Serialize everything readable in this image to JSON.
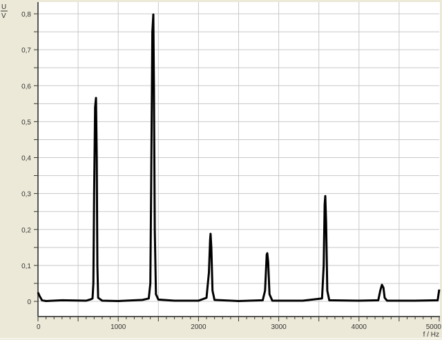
{
  "chart_data": {
    "type": "line",
    "title": "",
    "xlabel": "f / Hz",
    "ylabel_numerator": "U",
    "ylabel_denominator": "V",
    "xlim": [
      0,
      5000
    ],
    "ylim": [
      -0.04,
      0.833
    ],
    "grid": true,
    "x_ticks": [
      0,
      1000,
      2000,
      3000,
      4000,
      5000
    ],
    "x_tick_labels": [
      "0",
      "1000",
      "2000",
      "3000",
      "4000",
      "5000"
    ],
    "y_ticks": [
      0,
      0.1,
      0.2,
      0.3,
      0.4,
      0.5,
      0.6,
      0.7,
      0.8
    ],
    "y_tick_labels": [
      "0",
      "0,1",
      "0,2",
      "0,3",
      "0,4",
      "0,5",
      "0,6",
      "0,7",
      "0,8"
    ],
    "line_color": "#000000",
    "grid_color": "#c8c8c8",
    "background_color": "#ece9d8",
    "points": [
      [
        0,
        0.025
      ],
      [
        20,
        0.015
      ],
      [
        50,
        0.003
      ],
      [
        100,
        0.001
      ],
      [
        300,
        0.003
      ],
      [
        600,
        0.002
      ],
      [
        660,
        0.006
      ],
      [
        680,
        0.008
      ],
      [
        690,
        0.05
      ],
      [
        700,
        0.3
      ],
      [
        712,
        0.54
      ],
      [
        723,
        0.566
      ],
      [
        732,
        0.4
      ],
      [
        740,
        0.1
      ],
      [
        750,
        0.01
      ],
      [
        800,
        0.002
      ],
      [
        1000,
        0.001
      ],
      [
        1300,
        0.004
      ],
      [
        1380,
        0.008
      ],
      [
        1400,
        0.05
      ],
      [
        1410,
        0.3
      ],
      [
        1425,
        0.75
      ],
      [
        1437,
        0.798
      ],
      [
        1445,
        0.6
      ],
      [
        1455,
        0.2
      ],
      [
        1470,
        0.02
      ],
      [
        1500,
        0.005
      ],
      [
        1700,
        0.002
      ],
      [
        2000,
        0.002
      ],
      [
        2100,
        0.01
      ],
      [
        2130,
        0.08
      ],
      [
        2145,
        0.17
      ],
      [
        2151,
        0.188
      ],
      [
        2160,
        0.15
      ],
      [
        2175,
        0.03
      ],
      [
        2200,
        0.004
      ],
      [
        2500,
        0.001
      ],
      [
        2800,
        0.003
      ],
      [
        2830,
        0.03
      ],
      [
        2850,
        0.13
      ],
      [
        2857,
        0.134
      ],
      [
        2868,
        0.11
      ],
      [
        2885,
        0.02
      ],
      [
        2920,
        0.002
      ],
      [
        3300,
        0.002
      ],
      [
        3540,
        0.008
      ],
      [
        3560,
        0.1
      ],
      [
        3572,
        0.27
      ],
      [
        3580,
        0.293
      ],
      [
        3590,
        0.22
      ],
      [
        3605,
        0.03
      ],
      [
        3630,
        0.003
      ],
      [
        4000,
        0.002
      ],
      [
        4240,
        0.003
      ],
      [
        4265,
        0.03
      ],
      [
        4286,
        0.046
      ],
      [
        4305,
        0.038
      ],
      [
        4320,
        0.01
      ],
      [
        4350,
        0.002
      ],
      [
        4700,
        0.002
      ],
      [
        4980,
        0.003
      ],
      [
        5000,
        0.033
      ]
    ]
  }
}
